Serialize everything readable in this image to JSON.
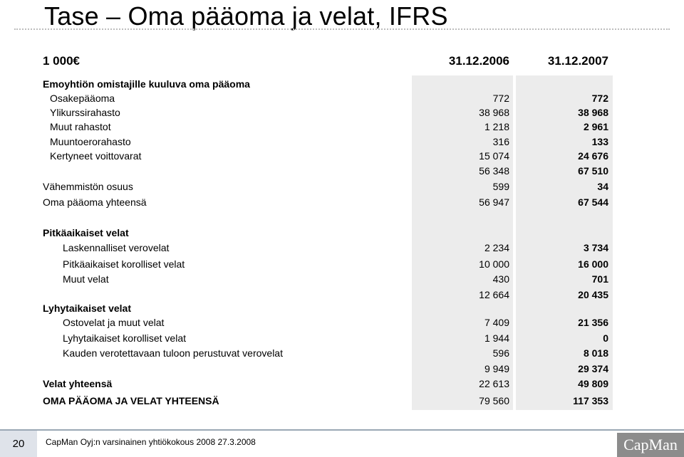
{
  "title": "Tase – Oma pääoma ja velat, IFRS",
  "header": {
    "unit": "1 000€",
    "col1": "31.12.2006",
    "col2": "31.12.2007"
  },
  "rows": [
    {
      "label": "Emoyhtiön omistajille kuuluva oma pääoma",
      "v1": "",
      "v2": "",
      "bold": true,
      "indent": 0
    },
    {
      "label": "Osakepääoma",
      "v1": "772",
      "v2": "772",
      "bold": false,
      "indent": 10
    },
    {
      "label": "Ylikurssirahasto",
      "v1": "38 968",
      "v2": "38 968",
      "bold": false,
      "indent": 10
    },
    {
      "label": "Muut rahastot",
      "v1": "1 218",
      "v2": "2 961",
      "bold": false,
      "indent": 10
    },
    {
      "label": "Muuntoerorahasto",
      "v1": "316",
      "v2": "133",
      "bold": false,
      "indent": 10
    },
    {
      "label": "Kertyneet voittovarat",
      "v1": "15 074",
      "v2": "24 676",
      "bold": false,
      "indent": 10
    },
    {
      "label": "",
      "v1": "56 348",
      "v2": "67 510",
      "bold": false,
      "indent": 0
    },
    {
      "label": "Vähemmistön osuus",
      "v1": "599",
      "v2": "34",
      "bold": false,
      "indent": 0
    },
    {
      "label": "Oma pääoma yhteensä",
      "v1": "56 947",
      "v2": "67 544",
      "bold": false,
      "indent": 0
    },
    {
      "label": "Pitkäaikaiset velat",
      "v1": "",
      "v2": "",
      "bold": true,
      "indent": 0
    },
    {
      "label": "Laskennalliset verovelat",
      "v1": "2 234",
      "v2": "3 734",
      "bold": false,
      "indent": 28
    },
    {
      "label": "Pitkäaikaiset korolliset velat",
      "v1": "10 000",
      "v2": "16 000",
      "bold": false,
      "indent": 28
    },
    {
      "label": "Muut velat",
      "v1": "430",
      "v2": "701",
      "bold": false,
      "indent": 28
    },
    {
      "label": "",
      "v1": "12 664",
      "v2": "20 435",
      "bold": false,
      "indent": 0
    },
    {
      "label": "Lyhytaikaiset velat",
      "v1": "",
      "v2": "",
      "bold": true,
      "indent": 0
    },
    {
      "label": "Ostovelat ja muut velat",
      "v1": "7 409",
      "v2": "21 356",
      "bold": false,
      "indent": 28
    },
    {
      "label": "Lyhytaikaiset korolliset velat",
      "v1": "1 944",
      "v2": "0",
      "bold": false,
      "indent": 28
    },
    {
      "label": "Kauden verotettavaan tuloon perustuvat verovelat",
      "v1": "596",
      "v2": "8 018",
      "bold": false,
      "indent": 28
    },
    {
      "label": "",
      "v1": "9 949",
      "v2": "29 374",
      "bold": false,
      "indent": 0
    },
    {
      "label": "Velat yhteensä",
      "v1": "22 613",
      "v2": "49 809",
      "bold": true,
      "indent": 0
    },
    {
      "label": "OMA PÄÄOMA JA VELAT YHTEENSÄ",
      "v1": "79 560",
      "v2": "117 353",
      "bold": true,
      "indent": 0
    }
  ],
  "footer": {
    "page_number": "20",
    "text": "CapMan Oyj:n varsinainen yhtiökokous 2008   27.3.2008",
    "logo": "CapMan"
  }
}
